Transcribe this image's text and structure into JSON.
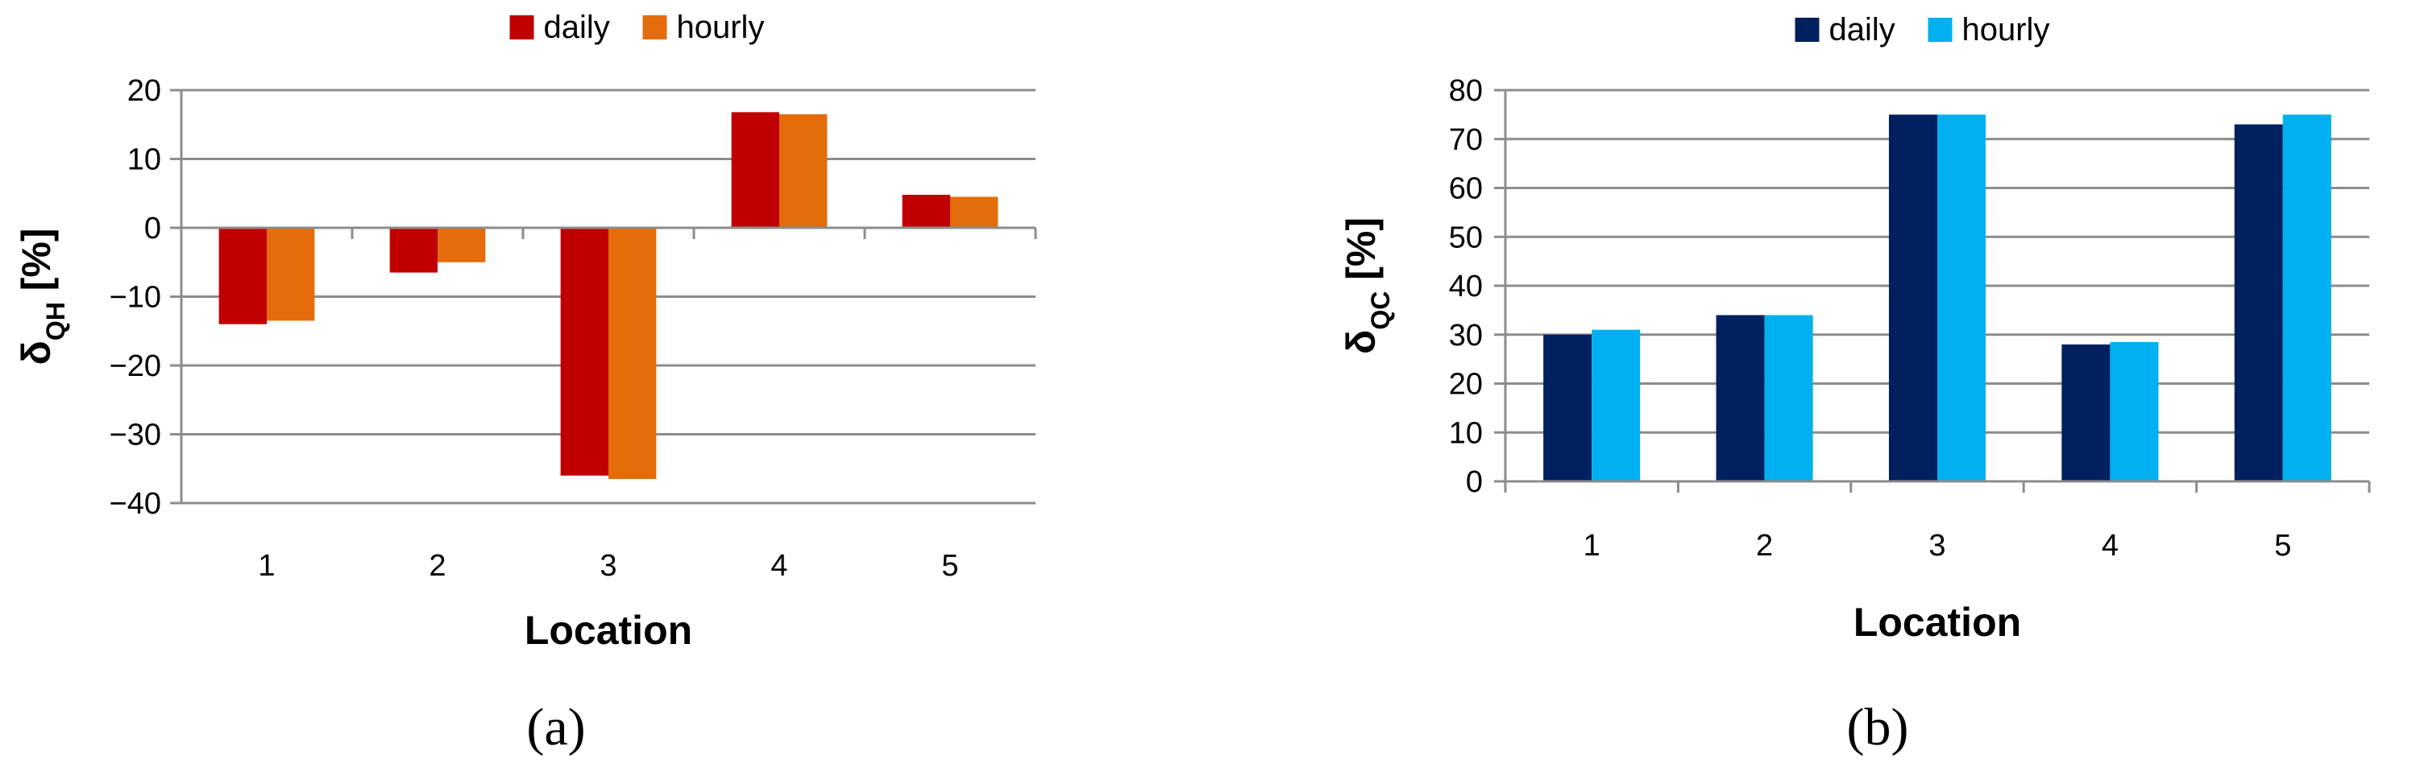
{
  "chart_data": [
    {
      "type": "bar",
      "panel_label": "(a)",
      "categories": [
        "1",
        "2",
        "3",
        "4",
        "5"
      ],
      "series": [
        {
          "name": "daily",
          "values": [
            -14,
            -6.5,
            -36,
            16.8,
            4.8
          ],
          "color": "#c00000"
        },
        {
          "name": "hourly",
          "values": [
            -13.5,
            -5,
            -36.5,
            16.5,
            4.5
          ],
          "color": "#e46c0a"
        }
      ],
      "xlabel": "Location",
      "ylabel": {
        "main": "δ",
        "sub": "QH",
        "suffix": " [%]"
      },
      "ylim": [
        -40,
        20
      ],
      "yticks": [
        -40,
        -30,
        -20,
        -10,
        0,
        10,
        20
      ],
      "grid": true,
      "legend": "top-center"
    },
    {
      "type": "bar",
      "panel_label": "(b)",
      "categories": [
        "1",
        "2",
        "3",
        "4",
        "5"
      ],
      "series": [
        {
          "name": "daily",
          "values": [
            30,
            34,
            75,
            28,
            73
          ],
          "color": "#002060"
        },
        {
          "name": "hourly",
          "values": [
            31,
            34,
            75,
            28.5,
            75
          ],
          "color": "#00b0f0"
        }
      ],
      "xlabel": "Location",
      "ylabel": {
        "main": "δ",
        "sub": "QC",
        "suffix": " [%]"
      },
      "ylim": [
        0,
        80
      ],
      "yticks": [
        0,
        10,
        20,
        30,
        40,
        50,
        60,
        70,
        80
      ],
      "grid": true,
      "legend": "top-center"
    }
  ]
}
